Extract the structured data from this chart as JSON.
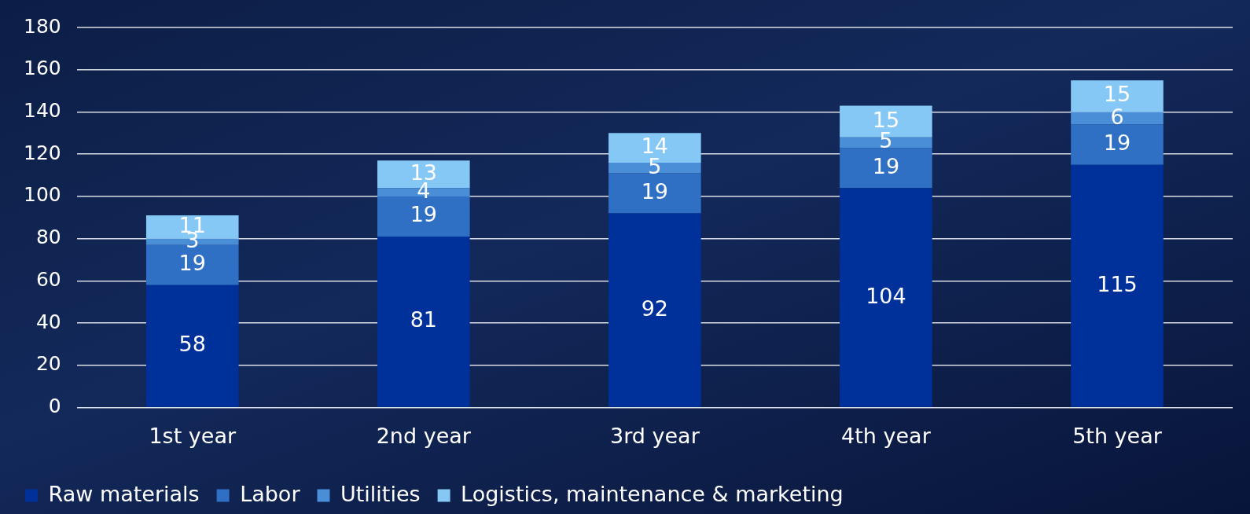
{
  "chart_data": {
    "type": "bar",
    "stacked": true,
    "categories": [
      "1st year",
      "2nd year",
      "3rd year",
      "4th year",
      "5th year"
    ],
    "series": [
      {
        "name": "Raw materials",
        "color": "#00309a",
        "values": [
          58,
          81,
          92,
          104,
          115
        ]
      },
      {
        "name": "Labor",
        "color": "#2f6fc4",
        "values": [
          19,
          19,
          19,
          19,
          19
        ]
      },
      {
        "name": "Utilities",
        "color": "#4a8ed8",
        "values": [
          3,
          4,
          5,
          5,
          6
        ]
      },
      {
        "name": "Logistics, maintenance & marketing",
        "color": "#86c8f5",
        "values": [
          11,
          13,
          14,
          15,
          15
        ]
      }
    ],
    "ylim": [
      0,
      180
    ],
    "yticks": [
      0,
      20,
      40,
      60,
      80,
      100,
      120,
      140,
      160,
      180
    ],
    "grid": "y",
    "legend": "bottom left",
    "data_labels": true
  }
}
